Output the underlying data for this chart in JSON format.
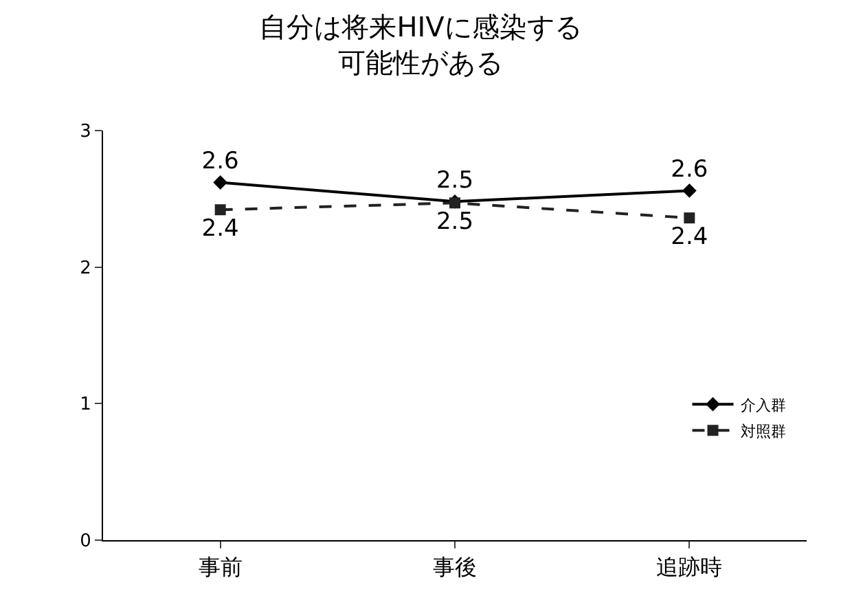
{
  "chart_data": {
    "type": "line",
    "title": "自分は将来HIVに感染する可能性がある",
    "categories": [
      "事前",
      "事後",
      "追跡時"
    ],
    "ylim": [
      0,
      3
    ],
    "yticks": [
      0,
      1,
      2,
      3
    ],
    "grid": false,
    "legend": "right",
    "series": [
      {
        "name": "介入群",
        "color": "#000000",
        "values": [
          2.62,
          2.48,
          2.56
        ],
        "value_labels": [
          "2.6",
          "2.5",
          "2.6"
        ],
        "marker": "diamond",
        "line_style": "solid"
      },
      {
        "name": "対照群",
        "color": "#222222",
        "values": [
          2.42,
          2.47,
          2.36
        ],
        "value_labels": [
          "2.4",
          "2.5",
          "2.4"
        ],
        "marker": "square",
        "line_style": "dashed"
      }
    ]
  }
}
